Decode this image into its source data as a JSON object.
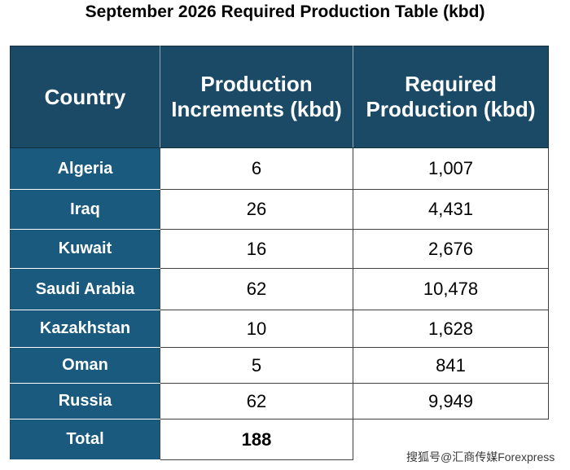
{
  "title": "September 2026 Required Production Table (kbd)",
  "table": {
    "headers": {
      "country": "Country",
      "increments_line1": "Production",
      "increments_line2": "Increments (kbd)",
      "required_line1": "Required",
      "required_line2": "Production (kbd)"
    },
    "rows": [
      {
        "country": "Algeria",
        "increment": "6",
        "required": "1,007"
      },
      {
        "country": "Iraq",
        "increment": "26",
        "required": "4,431"
      },
      {
        "country": "Kuwait",
        "increment": "16",
        "required": "2,676"
      },
      {
        "country": "Saudi Arabia",
        "increment": "62",
        "required": "10,478"
      },
      {
        "country": "Kazakhstan",
        "increment": "10",
        "required": "1,628"
      },
      {
        "country": "Oman",
        "increment": "5",
        "required": "841"
      },
      {
        "country": "Russia",
        "increment": "62",
        "required": "9,949"
      }
    ],
    "total": {
      "label": "Total",
      "increment": "188"
    }
  },
  "watermark": "搜狐号@汇商传媒Forexpress",
  "colors": {
    "header_bg": "#1a4a66",
    "country_bg": "#1a5a7e",
    "header_text": "#ffffff"
  }
}
